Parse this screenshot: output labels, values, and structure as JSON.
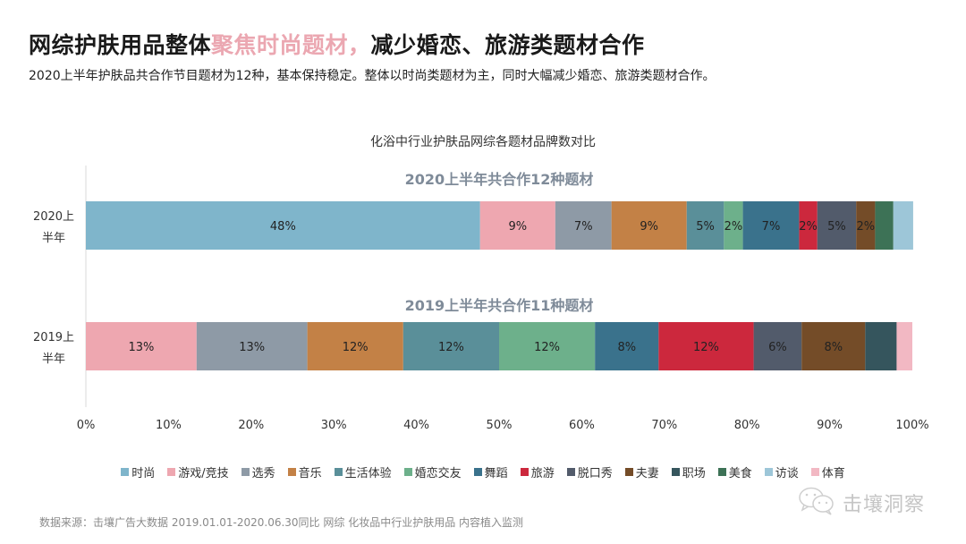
{
  "header": {
    "title_part1": "网综护肤用品整体",
    "title_highlight": "聚焦时尚题材，",
    "title_part2": "减少婚恋、旅游类题材合作",
    "subtitle": "2020上半年护肤品共合作节目题材为12种，基本保持稳定。整体以时尚类题材为主，同时大幅减少婚恋、旅游类题材合作。",
    "highlight_color": "#eba7b1"
  },
  "chart_data": {
    "type": "bar",
    "orientation": "horizontal",
    "stacked": "percent",
    "title": "化浴中行业护肤品网综各题材品牌数对比",
    "xlabel": "",
    "ylabel": "",
    "xlim": [
      0,
      100
    ],
    "x_ticks": [
      "0%",
      "10%",
      "20%",
      "30%",
      "40%",
      "50%",
      "60%",
      "70%",
      "80%",
      "90%",
      "100%"
    ],
    "grid": false,
    "legend_position": "bottom",
    "categories": [
      {
        "id": "2020",
        "label_line1": "2020上",
        "label_line2": "半年",
        "annotation": "2020上半年共合作12种题材"
      },
      {
        "id": "2019",
        "label_line1": "2019上",
        "label_line2": "半年",
        "annotation": "2019上半年共合作11种题材"
      }
    ],
    "series": [
      {
        "name": "时尚",
        "color": "#7fb5cb",
        "values": [
          47.7,
          null
        ],
        "labels": [
          "48%",
          ""
        ]
      },
      {
        "name": "游戏/竞技",
        "color": "#eea7b0",
        "values": [
          9.1,
          13.4
        ],
        "labels": [
          "9%",
          "13%"
        ]
      },
      {
        "name": "选秀",
        "color": "#8e9aa6",
        "values": [
          6.8,
          13.4
        ],
        "labels": [
          "7%",
          "13%"
        ]
      },
      {
        "name": "音乐",
        "color": "#c38146",
        "values": [
          9.1,
          11.6
        ],
        "labels": [
          "9%",
          "12%"
        ]
      },
      {
        "name": "生活体验",
        "color": "#5a8f99",
        "values": [
          4.5,
          11.6
        ],
        "labels": [
          "5%",
          "12%"
        ]
      },
      {
        "name": "婚恋交友",
        "color": "#6db08b",
        "values": [
          2.3,
          11.6
        ],
        "labels": [
          "2%",
          "12%"
        ]
      },
      {
        "name": "舞蹈",
        "color": "#3a728c",
        "values": [
          6.8,
          7.7
        ],
        "labels": [
          "7%",
          "8%"
        ]
      },
      {
        "name": "旅游",
        "color": "#cc283d",
        "values": [
          2.2,
          11.5
        ],
        "labels": [
          "2%",
          "12%"
        ]
      },
      {
        "name": "脱口秀",
        "color": "#525b6b",
        "values": [
          4.7,
          5.8
        ],
        "labels": [
          "5%",
          "6%"
        ]
      },
      {
        "name": "夫妻",
        "color": "#744c28",
        "values": [
          2.3,
          7.7
        ],
        "labels": [
          "2%",
          "8%"
        ]
      },
      {
        "name": "职场",
        "color": "#35555d",
        "values": [
          null,
          3.8
        ],
        "labels": [
          "",
          ""
        ]
      },
      {
        "name": "美食",
        "color": "#3d7256",
        "values": [
          2.2,
          null
        ],
        "labels": [
          "",
          ""
        ]
      },
      {
        "name": "访谈",
        "color": "#9dc6d8",
        "values": [
          2.4,
          null
        ],
        "labels": [
          "",
          ""
        ]
      },
      {
        "name": "体育",
        "color": "#f2b8c3",
        "values": [
          null,
          1.9
        ],
        "labels": [
          "",
          ""
        ]
      }
    ]
  },
  "footer": {
    "source": "数据来源：击壤广告大数据 2019.01.01-2020.06.30同比 网综 化妆品中行业护肤用品 内容植入监测",
    "watermark": "击壤洞察",
    "watermark_icon": "wechat-icon"
  }
}
